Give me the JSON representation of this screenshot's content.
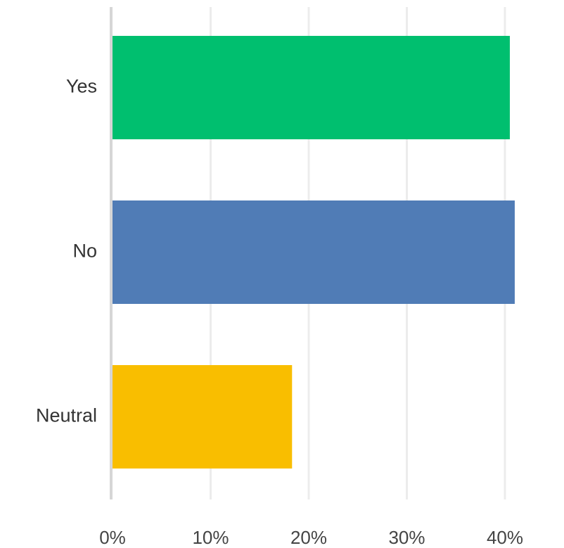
{
  "chart_data": {
    "type": "bar",
    "orientation": "horizontal",
    "categories": [
      "Yes",
      "No",
      "Neutral"
    ],
    "values": [
      40.5,
      41.0,
      18.3
    ],
    "value_unit": "%",
    "colors": [
      "#00bf6f",
      "#507cb6",
      "#f9be00"
    ],
    "xlim": [
      0,
      50
    ],
    "xticks": [
      0,
      10,
      20,
      30,
      40
    ],
    "xtick_labels": [
      "0%",
      "10%",
      "20%",
      "30%",
      "40%"
    ],
    "grid": true,
    "legend": "none"
  }
}
